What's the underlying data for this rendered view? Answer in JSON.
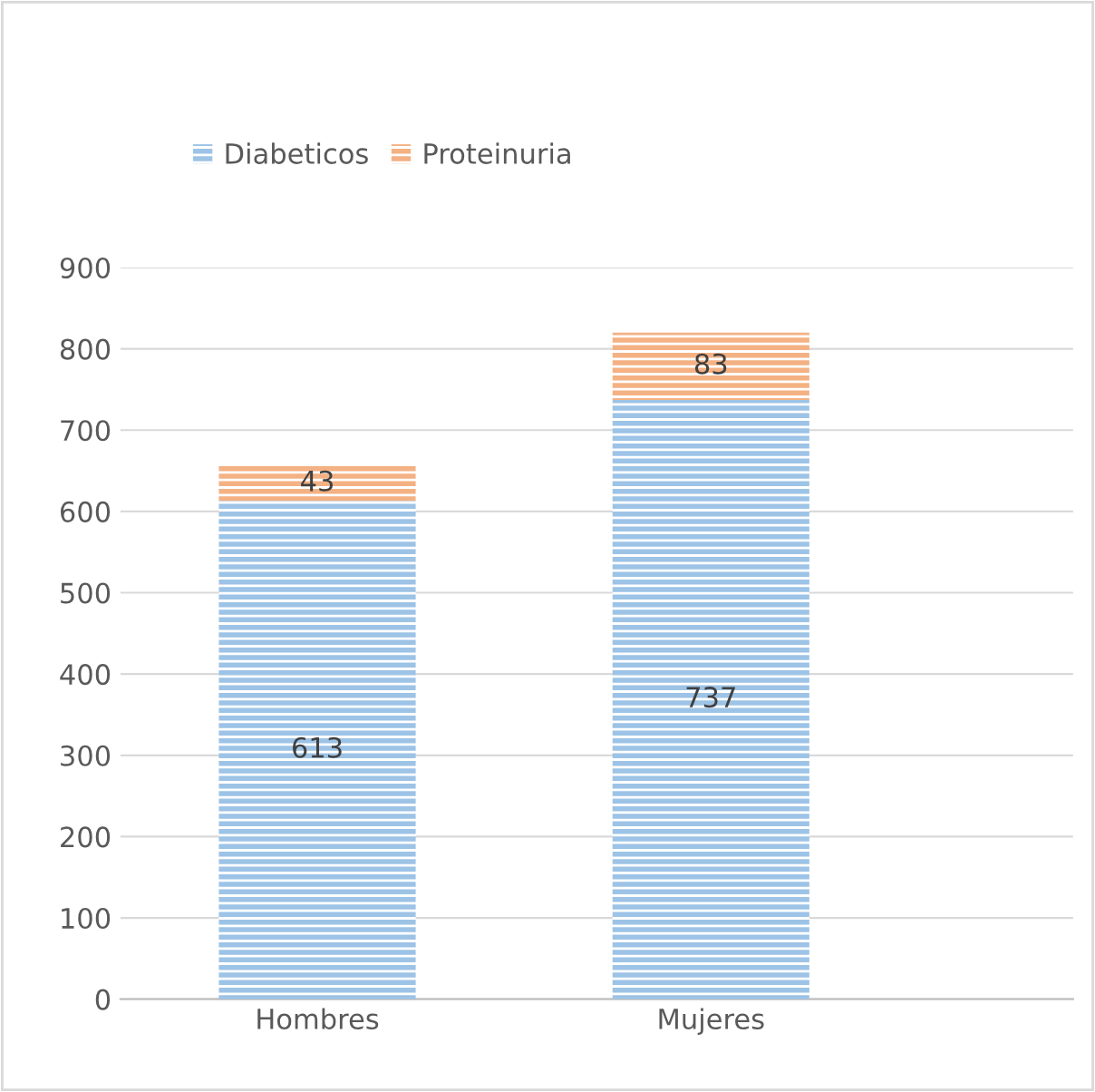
{
  "chart_data": {
    "type": "bar",
    "stacked": true,
    "categories": [
      "Hombres",
      "Mujeres"
    ],
    "series": [
      {
        "name": "Diabeticos",
        "color": "#9dc3e6",
        "values": [
          613,
          737
        ]
      },
      {
        "name": "Proteinuria",
        "color": "#f4b183",
        "values": [
          43,
          83
        ]
      }
    ],
    "ylim": [
      0,
      900
    ],
    "yticks": [
      0,
      100,
      200,
      300,
      400,
      500,
      600,
      700,
      800,
      900
    ],
    "grid": "y",
    "legend": "top",
    "data_labels": true
  }
}
